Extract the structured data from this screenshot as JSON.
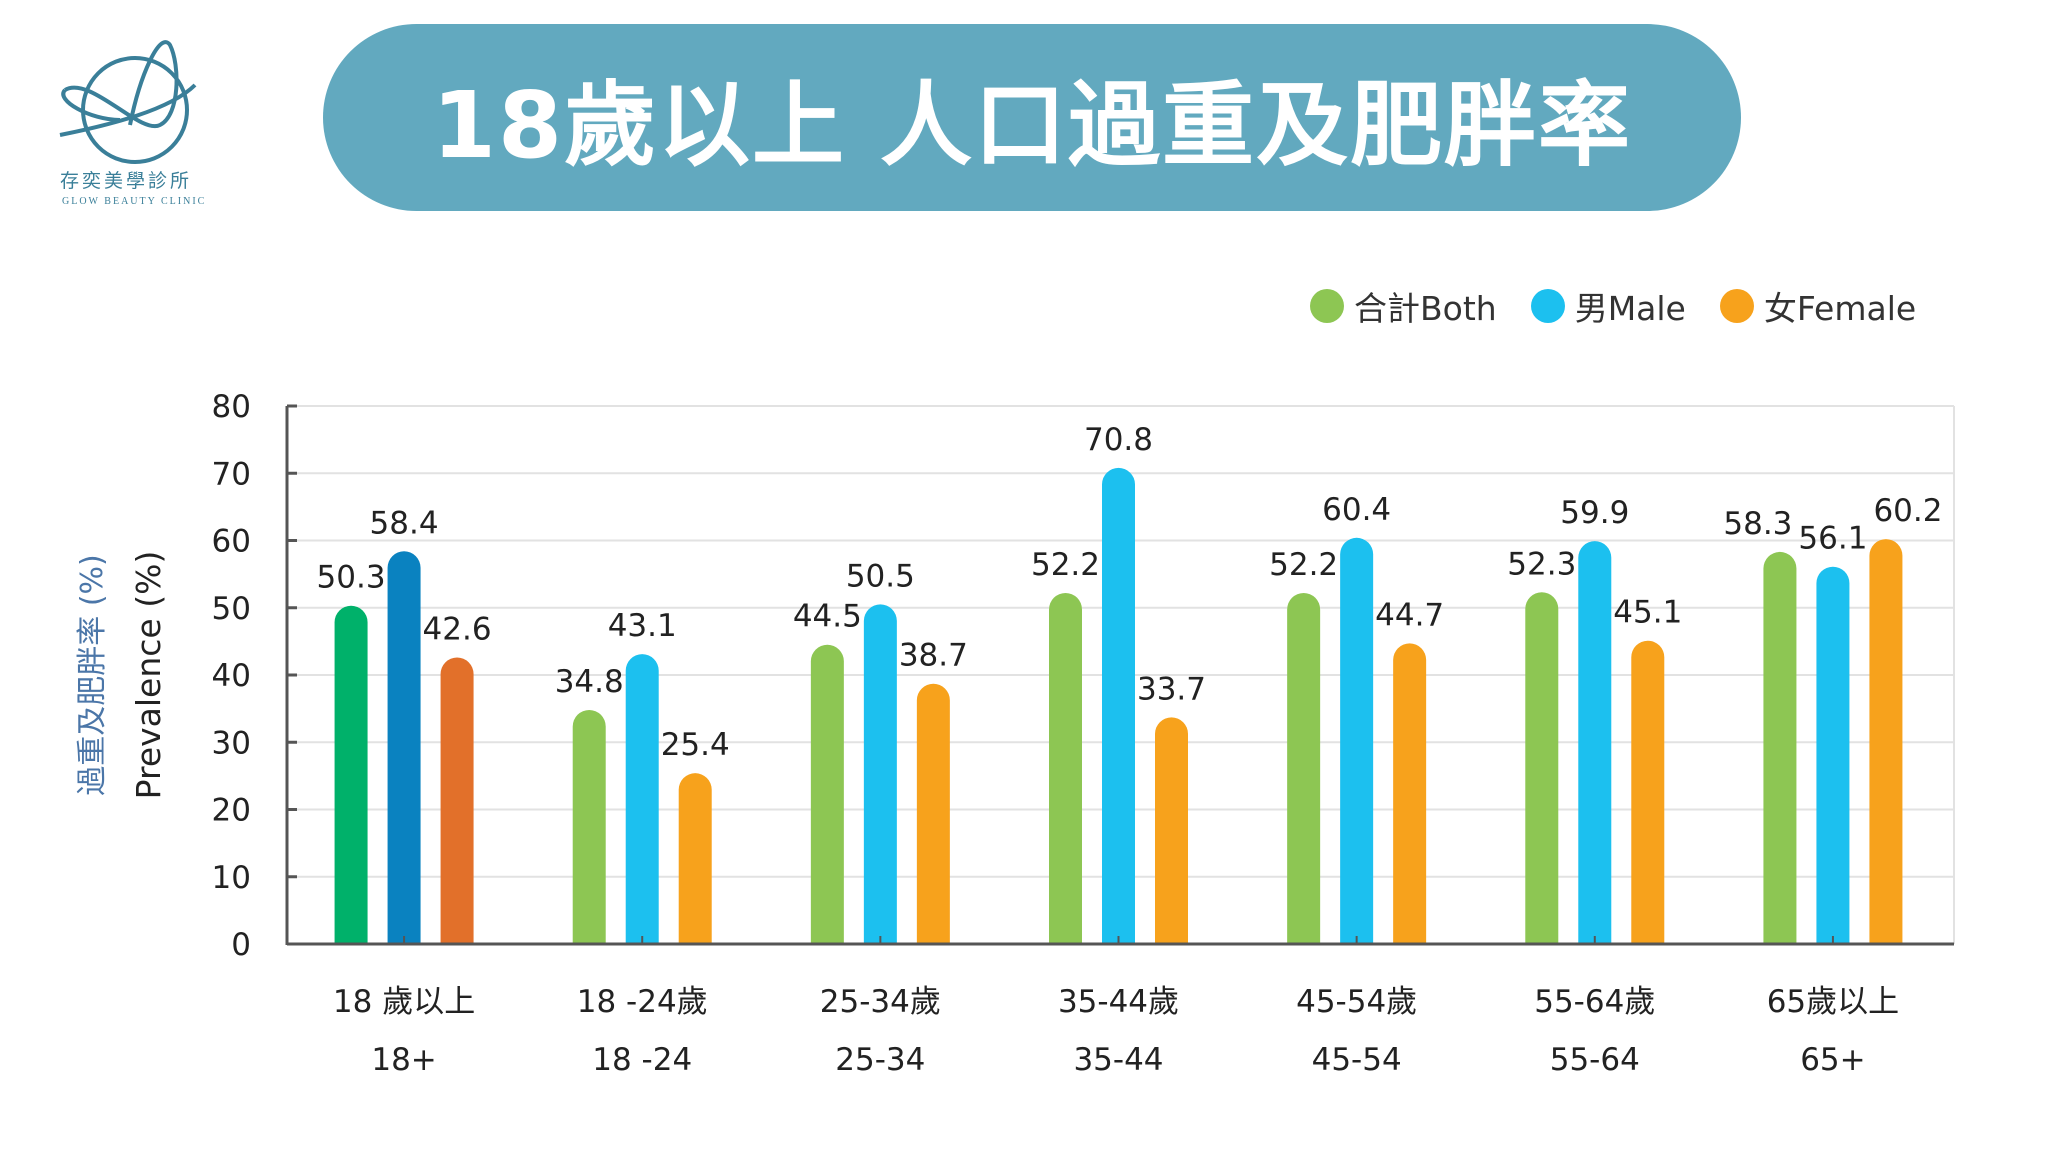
{
  "logo": {
    "name_cn": "存奕美學診所",
    "name_en": "GLOW BEAUTY CLINIC",
    "color": "#3a7f99"
  },
  "header": {
    "title": "18歲以上 人口過重及肥胖率",
    "banner_color": "#62a9bf"
  },
  "chart_data": {
    "type": "bar",
    "title": "18歲以上 人口過重及肥胖率",
    "ylabel_cn": "過重及肥胖率 (%)",
    "ylabel": "Prevalence (%)",
    "ylim": [
      0,
      80
    ],
    "yticks": [
      "0",
      "10",
      "20",
      "30",
      "40",
      "50",
      "60",
      "70",
      "80"
    ],
    "grid": true,
    "legend_position": "top-right",
    "categories": [
      {
        "cn": "18 歲以上",
        "en": "18+"
      },
      {
        "cn": "18 -24歲",
        "en": "18 -24"
      },
      {
        "cn": "25-34歲",
        "en": "25-34"
      },
      {
        "cn": "35-44歲",
        "en": "35-44"
      },
      {
        "cn": "45-54歲",
        "en": "45-54"
      },
      {
        "cn": "55-64歲",
        "en": "55-64"
      },
      {
        "cn": "65歲以上",
        "en": "65+"
      }
    ],
    "series": [
      {
        "name": "合計Both",
        "color": "#8dc653",
        "highlight_color": "#00b16a",
        "values": [
          50.3,
          34.8,
          44.5,
          52.2,
          52.2,
          52.3,
          58.3
        ]
      },
      {
        "name": "男Male",
        "color": "#1cc0ef",
        "highlight_color": "#0a82c0",
        "values": [
          58.4,
          43.1,
          50.5,
          70.8,
          60.4,
          59.9,
          56.1
        ]
      },
      {
        "name": "女Female",
        "color": "#f7a21c",
        "highlight_color": "#e2702a",
        "values": [
          42.6,
          25.4,
          38.7,
          33.7,
          44.7,
          45.1,
          60.2
        ]
      }
    ]
  }
}
